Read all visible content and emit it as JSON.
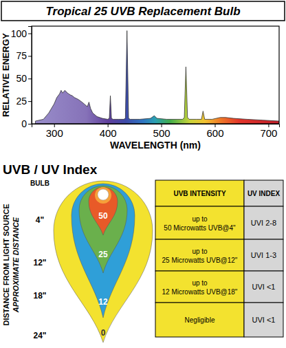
{
  "chart_data": {
    "type": "area",
    "title": "Tropical 25 UVB Replacement Bulb",
    "x_label": "WAVELENGTH (nm)",
    "y_label": "RELATIVE ENERGY",
    "x": [
      265,
      280,
      290,
      300,
      305,
      310,
      313,
      316,
      320,
      325,
      330,
      334,
      338,
      345,
      352,
      358,
      362,
      365,
      368,
      372,
      380,
      390,
      400,
      403,
      405,
      407,
      410,
      420,
      430,
      433,
      436,
      439,
      442,
      460,
      480,
      487,
      492,
      510,
      530,
      540,
      543,
      546,
      549,
      552,
      565,
      575,
      578,
      581,
      595,
      610,
      620,
      635,
      660,
      690,
      720
    ],
    "values": [
      3,
      5,
      12,
      22,
      29,
      33,
      37,
      34,
      37,
      34,
      32,
      31,
      29,
      27,
      24,
      21,
      19,
      24,
      17,
      12,
      8,
      6,
      5,
      6,
      31,
      6,
      5,
      5,
      5,
      6,
      103,
      6,
      5,
      5,
      6,
      9,
      6,
      5,
      5,
      5,
      7,
      63,
      7,
      5,
      5,
      5,
      14,
      5,
      5,
      7,
      7,
      6,
      5,
      4,
      3
    ],
    "xlim": [
      258,
      720
    ],
    "ylim": [
      0,
      108
    ],
    "xticks": [
      300,
      400,
      500,
      600,
      700
    ],
    "yticks": [
      0,
      25,
      50,
      75,
      100
    ],
    "grid": false
  },
  "uv_index": {
    "title": "UVB / UV Index",
    "axis_title": [
      "DISTANCE FROM LIGHT SOURCE",
      "APPROXIMATE DISTANCE"
    ],
    "distance_labels": [
      "BULB",
      "4\"",
      "12\"",
      "18\"",
      "24\""
    ],
    "zone_labels": [
      50,
      25,
      12,
      0
    ],
    "columns": [
      "UVB INTENSITY",
      "UV INDEX"
    ],
    "rows": [
      [
        [
          "up to",
          "50 Microwatts UVB@4\""
        ],
        "UVI 2-8"
      ],
      [
        [
          "up to",
          "25 Microwatts UVB@12\""
        ],
        "UVI 1-3"
      ],
      [
        [
          "up to",
          "12 Microwatts UVB@18\""
        ],
        "UVI <1"
      ],
      [
        [
          "Negligible"
        ],
        "UVI <1"
      ]
    ]
  }
}
